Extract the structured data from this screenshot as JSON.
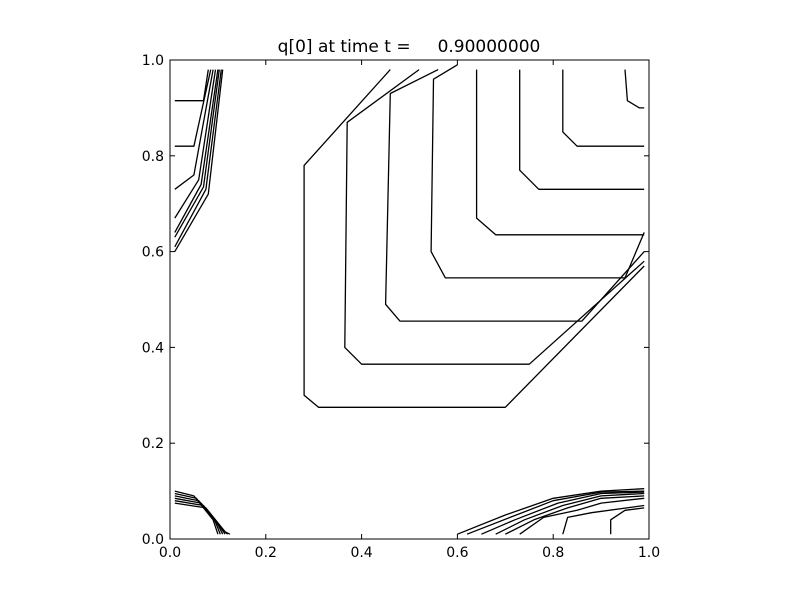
{
  "chart_data": {
    "type": "contour",
    "title": "q[0] at time t =     0.90000000",
    "xlim": [
      0.0,
      1.0
    ],
    "ylim": [
      0.0,
      1.0
    ],
    "x_ticks": [
      0.0,
      0.2,
      0.4,
      0.6,
      0.8,
      1.0
    ],
    "y_ticks": [
      0.0,
      0.2,
      0.4,
      0.6,
      0.8,
      1.0
    ],
    "x_tick_labels": [
      "0.0",
      "0.2",
      "0.4",
      "0.6",
      "0.8",
      "1.0"
    ],
    "y_tick_labels": [
      "0.0",
      "0.2",
      "0.4",
      "0.6",
      "0.8",
      "1.0"
    ],
    "grid": false,
    "line_color": "#000000",
    "contours": [
      {
        "group": "upper-right",
        "points": [
          [
            0.95,
            0.98
          ],
          [
            0.955,
            0.915
          ],
          [
            0.98,
            0.9
          ],
          [
            0.99,
            0.9
          ]
        ]
      },
      {
        "group": "upper-right",
        "points": [
          [
            0.82,
            0.98
          ],
          [
            0.82,
            0.85
          ],
          [
            0.85,
            0.82
          ],
          [
            0.99,
            0.82
          ]
        ]
      },
      {
        "group": "upper-right",
        "points": [
          [
            0.73,
            0.98
          ],
          [
            0.73,
            0.77
          ],
          [
            0.77,
            0.73
          ],
          [
            0.99,
            0.73
          ]
        ]
      },
      {
        "group": "upper-right",
        "points": [
          [
            0.64,
            0.98
          ],
          [
            0.64,
            0.67
          ],
          [
            0.68,
            0.635
          ],
          [
            0.99,
            0.635
          ]
        ]
      },
      {
        "group": "upper-right",
        "points": [
          [
            0.6,
            0.99
          ],
          [
            0.55,
            0.96
          ],
          [
            0.545,
            0.6
          ],
          [
            0.575,
            0.545
          ],
          [
            0.95,
            0.545
          ],
          [
            0.99,
            0.64
          ]
        ]
      },
      {
        "group": "upper-right",
        "points": [
          [
            0.56,
            0.98
          ],
          [
            0.46,
            0.93
          ],
          [
            0.45,
            0.49
          ],
          [
            0.48,
            0.455
          ],
          [
            0.86,
            0.455
          ],
          [
            0.99,
            0.6
          ]
        ]
      },
      {
        "group": "upper-right",
        "points": [
          [
            0.52,
            0.98
          ],
          [
            0.37,
            0.87
          ],
          [
            0.365,
            0.4
          ],
          [
            0.4,
            0.365
          ],
          [
            0.75,
            0.365
          ],
          [
            0.99,
            0.58
          ]
        ]
      },
      {
        "group": "upper-right",
        "points": [
          [
            0.46,
            0.98
          ],
          [
            0.28,
            0.78
          ],
          [
            0.28,
            0.3
          ],
          [
            0.31,
            0.275
          ],
          [
            0.7,
            0.275
          ],
          [
            0.99,
            0.57
          ]
        ]
      },
      {
        "group": "left-upper",
        "points": [
          [
            0.01,
            0.915
          ],
          [
            0.07,
            0.915
          ],
          [
            0.08,
            0.98
          ]
        ]
      },
      {
        "group": "left-upper",
        "points": [
          [
            0.01,
            0.82
          ],
          [
            0.05,
            0.82
          ],
          [
            0.085,
            0.98
          ]
        ]
      },
      {
        "group": "left-upper",
        "points": [
          [
            0.01,
            0.73
          ],
          [
            0.05,
            0.76
          ],
          [
            0.09,
            0.98
          ]
        ]
      },
      {
        "group": "left-upper",
        "points": [
          [
            0.01,
            0.67
          ],
          [
            0.06,
            0.75
          ],
          [
            0.095,
            0.98
          ]
        ]
      },
      {
        "group": "left-upper",
        "points": [
          [
            0.01,
            0.64
          ],
          [
            0.065,
            0.74
          ],
          [
            0.1,
            0.98
          ]
        ]
      },
      {
        "group": "left-upper",
        "points": [
          [
            0.01,
            0.63
          ],
          [
            0.07,
            0.735
          ],
          [
            0.103,
            0.98
          ]
        ]
      },
      {
        "group": "left-upper",
        "points": [
          [
            0.01,
            0.61
          ],
          [
            0.075,
            0.73
          ],
          [
            0.107,
            0.98
          ]
        ]
      },
      {
        "group": "left-upper",
        "points": [
          [
            0.01,
            0.6
          ],
          [
            0.08,
            0.72
          ],
          [
            0.11,
            0.98
          ]
        ]
      },
      {
        "group": "lower-left",
        "points": [
          [
            0.01,
            0.1
          ],
          [
            0.05,
            0.09
          ],
          [
            0.09,
            0.04
          ],
          [
            0.1,
            0.01
          ]
        ]
      },
      {
        "group": "lower-left",
        "points": [
          [
            0.01,
            0.095
          ],
          [
            0.055,
            0.085
          ],
          [
            0.095,
            0.035
          ],
          [
            0.105,
            0.01
          ]
        ]
      },
      {
        "group": "lower-left",
        "points": [
          [
            0.01,
            0.09
          ],
          [
            0.06,
            0.08
          ],
          [
            0.1,
            0.03
          ],
          [
            0.11,
            0.01
          ]
        ]
      },
      {
        "group": "lower-left",
        "points": [
          [
            0.01,
            0.085
          ],
          [
            0.065,
            0.075
          ],
          [
            0.105,
            0.025
          ],
          [
            0.115,
            0.01
          ]
        ]
      },
      {
        "group": "lower-left",
        "points": [
          [
            0.01,
            0.08
          ],
          [
            0.07,
            0.07
          ],
          [
            0.11,
            0.02
          ],
          [
            0.12,
            0.01
          ]
        ]
      },
      {
        "group": "lower-left",
        "points": [
          [
            0.01,
            0.075
          ],
          [
            0.075,
            0.065
          ],
          [
            0.115,
            0.015
          ],
          [
            0.125,
            0.01
          ]
        ]
      },
      {
        "group": "lower-right",
        "points": [
          [
            0.6,
            0.01
          ],
          [
            0.7,
            0.05
          ],
          [
            0.8,
            0.085
          ],
          [
            0.9,
            0.1
          ],
          [
            0.99,
            0.105
          ]
        ]
      },
      {
        "group": "lower-right",
        "points": [
          [
            0.62,
            0.01
          ],
          [
            0.71,
            0.045
          ],
          [
            0.8,
            0.08
          ],
          [
            0.9,
            0.098
          ],
          [
            0.99,
            0.1
          ]
        ]
      },
      {
        "group": "lower-right",
        "points": [
          [
            0.65,
            0.01
          ],
          [
            0.72,
            0.04
          ],
          [
            0.81,
            0.075
          ],
          [
            0.9,
            0.095
          ],
          [
            0.99,
            0.098
          ]
        ]
      },
      {
        "group": "lower-right",
        "points": [
          [
            0.68,
            0.01
          ],
          [
            0.74,
            0.04
          ],
          [
            0.82,
            0.07
          ],
          [
            0.9,
            0.09
          ],
          [
            0.99,
            0.095
          ]
        ]
      },
      {
        "group": "lower-right",
        "points": [
          [
            0.7,
            0.01
          ],
          [
            0.76,
            0.04
          ],
          [
            0.83,
            0.065
          ],
          [
            0.9,
            0.085
          ],
          [
            0.99,
            0.09
          ]
        ]
      },
      {
        "group": "lower-right",
        "points": [
          [
            0.73,
            0.01
          ],
          [
            0.78,
            0.045
          ],
          [
            0.85,
            0.06
          ],
          [
            0.9,
            0.075
          ],
          [
            0.99,
            0.085
          ]
        ]
      },
      {
        "group": "lower-right",
        "points": [
          [
            0.82,
            0.01
          ],
          [
            0.83,
            0.045
          ],
          [
            0.88,
            0.055
          ],
          [
            0.99,
            0.07
          ]
        ]
      },
      {
        "group": "lower-right",
        "points": [
          [
            0.92,
            0.01
          ],
          [
            0.92,
            0.04
          ],
          [
            0.95,
            0.06
          ],
          [
            0.99,
            0.065
          ]
        ]
      }
    ]
  }
}
